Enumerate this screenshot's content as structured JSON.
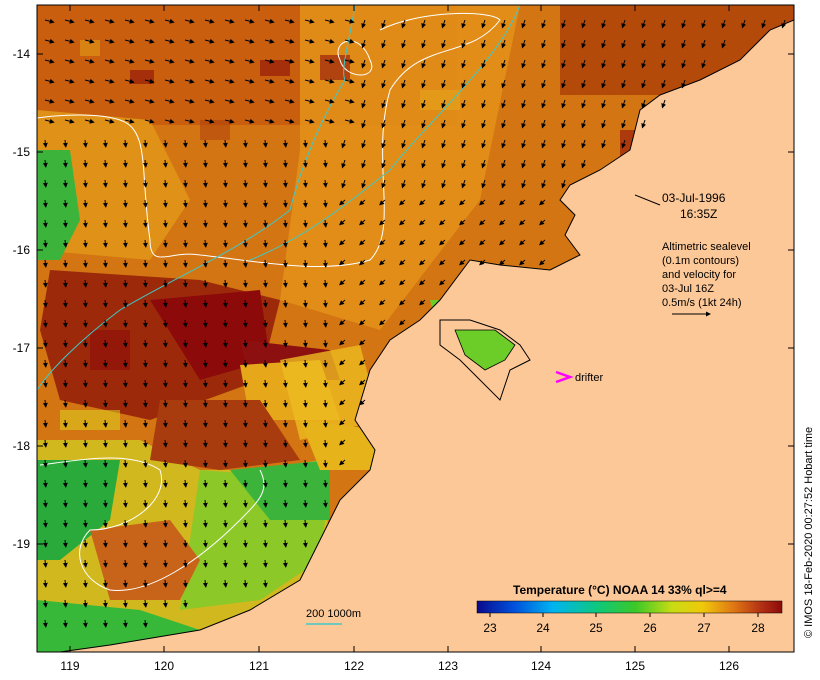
{
  "map": {
    "date": "03-Jul-1996",
    "time": "16:35Z",
    "notes": [
      "Altimetric sealevel",
      "(0.1m contours)",
      "and velocity for",
      "03-Jul 16Z",
      "0.5m/s (1kt 24h)"
    ],
    "drifter_label": "drifter",
    "bathy_label": "200  1000m",
    "credit": "© IMOS 18-Feb-2020 00:27:52 Hobart time",
    "colorbar": {
      "title": "Temperature (°C) NOAA 14 33% ql>=4",
      "ticks": [
        "23",
        "24",
        "25",
        "26",
        "27",
        "28"
      ]
    },
    "lon_ticks": [
      "119",
      "120",
      "121",
      "122",
      "123",
      "124",
      "125",
      "126"
    ],
    "lat_ticks": [
      "-14",
      "-15",
      "-16",
      "-17",
      "-18",
      "-19"
    ],
    "colors": {
      "land": "#fdc897",
      "warm": "#b04a08",
      "hot": "#8c0a0a",
      "mid": "#e09a1a",
      "cool": "#28b428",
      "drifter": "#ff00ff",
      "contour": "#40c8c8"
    }
  }
}
